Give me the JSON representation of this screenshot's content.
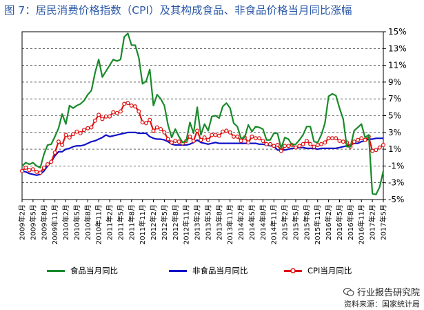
{
  "title": "图 7：居民消费价格指数（CPI）及其构成食品、非食品价格当月同比涨幅",
  "watermark": "行业报告研究院",
  "source": "资料来源：国家统计局",
  "chart_data": {
    "type": "line",
    "x": [
      "2009年2月",
      "2009年3月",
      "2009年4月",
      "2009年5月",
      "2009年6月",
      "2009年7月",
      "2009年8月",
      "2009年9月",
      "2009年10月",
      "2009年11月",
      "2009年12月",
      "2010年1月",
      "2010年2月",
      "2010年3月",
      "2010年4月",
      "2010年5月",
      "2010年6月",
      "2010年7月",
      "2010年8月",
      "2010年9月",
      "2010年10月",
      "2010年11月",
      "2010年12月",
      "2011年1月",
      "2011年2月",
      "2011年3月",
      "2011年4月",
      "2011年5月",
      "2011年6月",
      "2011年7月",
      "2011年8月",
      "2011年9月",
      "2011年10月",
      "2011年11月",
      "2011年12月",
      "2012年1月",
      "2012年2月",
      "2012年3月",
      "2012年4月",
      "2012年5月",
      "2012年6月",
      "2012年7月",
      "2012年8月",
      "2012年9月",
      "2012年10月",
      "2012年11月",
      "2012年12月",
      "2013年1月",
      "2013年2月",
      "2013年3月",
      "2013年4月",
      "2013年5月",
      "2013年6月",
      "2013年7月",
      "2013年8月",
      "2013年9月",
      "2013年10月",
      "2013年11月",
      "2013年12月",
      "2014年1月",
      "2014年2月",
      "2014年3月",
      "2014年4月",
      "2014年5月",
      "2014年6月",
      "2014年7月",
      "2014年8月",
      "2014年9月",
      "2014年10月",
      "2014年11月",
      "2014年12月",
      "2015年1月",
      "2015年2月",
      "2015年3月",
      "2015年4月",
      "2015年5月",
      "2015年6月",
      "2015年7月",
      "2015年8月",
      "2015年9月",
      "2015年10月",
      "2015年11月",
      "2015年12月",
      "2016年1月",
      "2016年2月",
      "2016年3月",
      "2016年4月",
      "2016年5月",
      "2016年6月",
      "2016年7月",
      "2016年8月",
      "2016年9月",
      "2016年10月",
      "2016年11月",
      "2016年12月",
      "2017年1月",
      "2017年2月",
      "2017年3月",
      "2017年4月",
      "2017年5月"
    ],
    "tick_labels": [
      "2009年2月",
      "2009年5月",
      "2009年8月",
      "2009年11月",
      "2010年2月",
      "2010年5月",
      "2010年8月",
      "2010年11月",
      "2011年2月",
      "2011年5月",
      "2011年8月",
      "2011年11月",
      "2012年2月",
      "2012年5月",
      "2012年8月",
      "2012年11月",
      "2013年2月",
      "2013年5月",
      "2013年8月",
      "2013年11月",
      "2014年2月",
      "2014年5月",
      "2014年8月",
      "2014年11月",
      "2015年2月",
      "2015年5月",
      "2015年8月",
      "2015年11月",
      "2016年2月",
      "2016年5月",
      "2016年8月",
      "2016年11月",
      "2017年2月",
      "2017年5月"
    ],
    "ylim": [
      -5,
      15
    ],
    "y_ticks": [
      -5,
      -3,
      -1,
      1,
      3,
      5,
      7,
      9,
      11,
      13,
      15
    ],
    "y_tick_labels": [
      "-5%",
      "-3%",
      "-1%",
      "1%",
      "3%",
      "5%",
      "7%",
      "9%",
      "11%",
      "13%",
      "15%"
    ],
    "y_axis_side": "right",
    "grid": "horizontal dashed",
    "legend_position": "bottom",
    "series": [
      {
        "name": "食品当月同比",
        "color": "#1a8a2a",
        "marker": "none",
        "values": [
          -1.0,
          -0.6,
          -0.8,
          -0.6,
          -1.0,
          -1.2,
          0.4,
          1.5,
          1.6,
          2.5,
          3.5,
          5.2,
          4.0,
          6.2,
          5.9,
          6.2,
          6.4,
          6.8,
          7.5,
          8.0,
          10.1,
          11.7,
          9.6,
          10.3,
          11.0,
          11.7,
          11.5,
          11.7,
          14.4,
          14.8,
          13.4,
          13.4,
          11.9,
          8.8,
          9.1,
          10.5,
          6.2,
          7.5,
          7.0,
          6.2,
          3.9,
          2.4,
          3.4,
          2.5,
          1.8,
          2.0,
          4.2,
          2.9,
          6.0,
          2.7,
          4.0,
          3.2,
          4.9,
          5.0,
          4.7,
          6.1,
          6.5,
          5.9,
          4.1,
          3.7,
          2.3,
          2.4,
          3.9,
          3.1,
          3.7,
          3.6,
          3.4,
          2.1,
          2.1,
          2.9,
          2.9,
          1.1,
          2.4,
          2.2,
          1.5,
          1.6,
          2.1,
          2.7,
          3.7,
          3.7,
          1.9,
          1.8,
          2.7,
          4.1,
          7.3,
          7.6,
          7.4,
          5.9,
          4.6,
          1.3,
          1.3,
          3.2,
          3.6,
          4.0,
          2.4,
          2.7,
          -4.3,
          -4.4,
          -3.5,
          -1.6
        ]
      },
      {
        "name": "非食品当月同比",
        "color": "#1010c8",
        "marker": "none",
        "values": [
          -1.6,
          -1.7,
          -1.9,
          -2.0,
          -2.1,
          -2.0,
          -1.6,
          -1.0,
          -0.5,
          0.2,
          0.7,
          0.7,
          1.0,
          1.1,
          1.3,
          1.4,
          1.4,
          1.5,
          1.7,
          1.9,
          2.0,
          2.2,
          2.4,
          2.7,
          2.5,
          2.6,
          2.7,
          2.8,
          2.9,
          3.0,
          3.0,
          3.0,
          2.9,
          2.9,
          2.9,
          2.5,
          2.3,
          2.2,
          2.2,
          2.1,
          1.9,
          1.6,
          1.5,
          1.5,
          1.5,
          1.5,
          1.6,
          1.8,
          2.1,
          1.8,
          1.7,
          1.6,
          1.7,
          1.8,
          1.7,
          1.7,
          1.7,
          1.7,
          1.7,
          1.7,
          1.7,
          1.7,
          1.7,
          1.7,
          1.7,
          1.6,
          1.6,
          1.5,
          1.4,
          1.4,
          0.9,
          0.9,
          0.9,
          1.0,
          1.1,
          1.1,
          1.2,
          1.2,
          1.1,
          1.1,
          1.1,
          1.0,
          1.1,
          1.1,
          1.1,
          1.1,
          1.1,
          1.2,
          1.3,
          1.4,
          1.5,
          1.7,
          1.7,
          1.9,
          2.0,
          2.2,
          2.2,
          2.3,
          2.3,
          2.3
        ]
      },
      {
        "name": "CPI当月同比",
        "color": "#e01010",
        "marker": "circle",
        "values": [
          -1.6,
          -1.2,
          -1.5,
          -1.4,
          -1.7,
          -1.8,
          -1.2,
          -0.8,
          -0.5,
          0.6,
          1.9,
          1.5,
          2.7,
          2.4,
          2.8,
          3.1,
          2.9,
          3.3,
          3.5,
          3.6,
          4.4,
          5.1,
          4.6,
          4.9,
          4.9,
          5.4,
          5.3,
          5.5,
          6.4,
          6.5,
          6.2,
          6.1,
          5.5,
          4.2,
          4.1,
          4.5,
          3.2,
          3.6,
          3.4,
          3.0,
          2.2,
          1.8,
          2.0,
          1.9,
          1.7,
          2.0,
          2.5,
          2.0,
          3.2,
          2.1,
          2.4,
          2.1,
          2.7,
          2.7,
          2.6,
          3.1,
          3.2,
          3.0,
          2.5,
          2.5,
          2.0,
          2.4,
          1.8,
          2.5,
          2.3,
          2.3,
          2.0,
          1.6,
          1.6,
          1.4,
          1.5,
          0.8,
          1.4,
          1.4,
          1.5,
          1.2,
          1.4,
          1.6,
          2.0,
          1.6,
          1.3,
          1.5,
          1.6,
          1.8,
          2.3,
          2.3,
          2.3,
          2.0,
          1.9,
          1.8,
          1.3,
          1.9,
          2.1,
          2.3,
          2.1,
          2.5,
          0.8,
          0.9,
          1.2,
          1.5
        ]
      }
    ]
  }
}
